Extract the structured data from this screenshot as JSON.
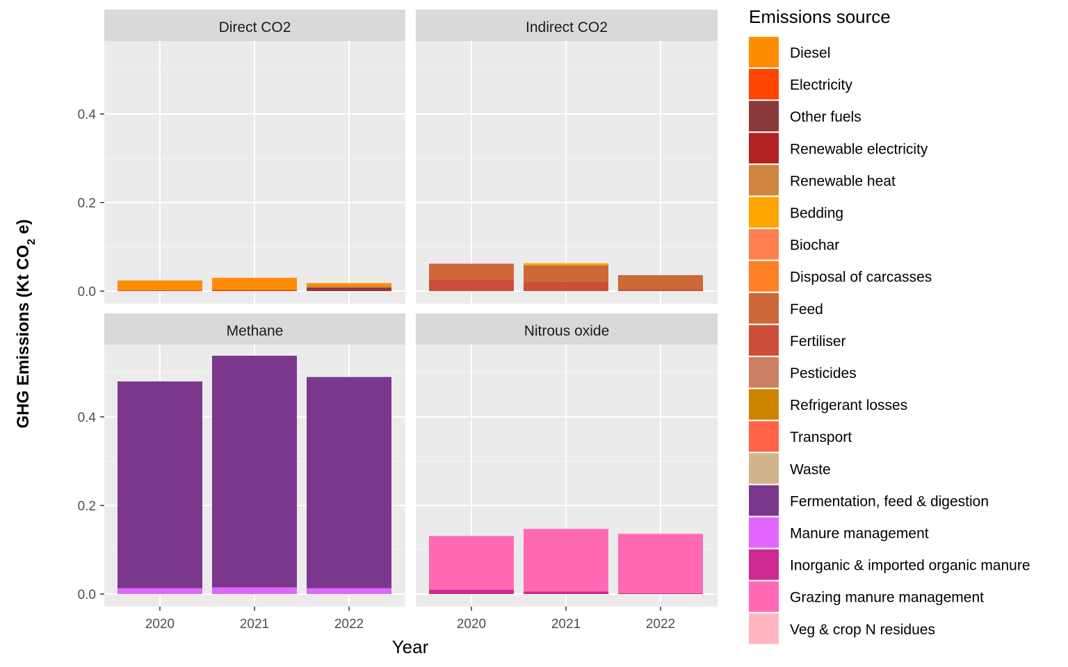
{
  "chart_data": {
    "type": "bar",
    "stacked": true,
    "facets": [
      "Direct CO2",
      "Indirect CO2",
      "Methane",
      "Nitrous oxide"
    ],
    "categories": [
      "2020",
      "2021",
      "2022"
    ],
    "xlabel": "Year",
    "ylabel": {
      "prefix": "GHG Emissions (Kt CO",
      "subscript": "2",
      "suffix": " e)"
    },
    "ylim": [
      0,
      0.58
    ],
    "yticks": [
      0.0,
      0.2,
      0.4
    ],
    "ytick_labels": [
      "0.0",
      "0.2",
      "0.4"
    ],
    "grid": true,
    "legend_position": "right",
    "legend_title": "Emissions source",
    "legend": [
      {
        "name": "Diesel",
        "color": "#FF8C00"
      },
      {
        "name": "Electricity",
        "color": "#FF4500"
      },
      {
        "name": "Other fuels",
        "color": "#8B3A3A"
      },
      {
        "name": "Renewable electricity",
        "color": "#B22222"
      },
      {
        "name": "Renewable heat",
        "color": "#CD853F"
      },
      {
        "name": "Bedding",
        "color": "#FFA500"
      },
      {
        "name": "Biochar",
        "color": "#FF7F50"
      },
      {
        "name": "Disposal of carcasses",
        "color": "#FF7F24"
      },
      {
        "name": "Feed",
        "color": "#CD6839"
      },
      {
        "name": "Fertiliser",
        "color": "#CD4F39"
      },
      {
        "name": "Pesticides",
        "color": "#CD7F62"
      },
      {
        "name": "Refrigerant losses",
        "color": "#CD8500"
      },
      {
        "name": "Transport",
        "color": "#FF6347"
      },
      {
        "name": "Waste",
        "color": "#D2B48C"
      },
      {
        "name": "Fermentation, feed & digestion",
        "color": "#7B378B"
      },
      {
        "name": "Manure management",
        "color": "#E066FF"
      },
      {
        "name": "Inorganic & imported organic manure",
        "color": "#CD2990"
      },
      {
        "name": "Grazing manure management",
        "color": "#FF69B4"
      },
      {
        "name": "Veg & crop N residues",
        "color": "#FFB6C1"
      }
    ],
    "panels": [
      {
        "facet": "Direct CO2",
        "bars": [
          {
            "x": "2020",
            "segments": [
              {
                "source": "Other fuels",
                "value": 0.001
              },
              {
                "source": "Electricity",
                "value": 0.001
              },
              {
                "source": "Diesel",
                "value": 0.022
              }
            ]
          },
          {
            "x": "2021",
            "segments": [
              {
                "source": "Other fuels",
                "value": 0.001
              },
              {
                "source": "Electricity",
                "value": 0.002
              },
              {
                "source": "Diesel",
                "value": 0.027
              }
            ]
          },
          {
            "x": "2022",
            "segments": [
              {
                "source": "Other fuels",
                "value": 0.008
              },
              {
                "source": "Renewable heat",
                "value": 0.003
              },
              {
                "source": "Diesel",
                "value": 0.007
              }
            ]
          }
        ]
      },
      {
        "facet": "Indirect CO2",
        "bars": [
          {
            "x": "2020",
            "segments": [
              {
                "source": "Fertiliser",
                "value": 0.026
              },
              {
                "source": "Feed",
                "value": 0.036
              }
            ]
          },
          {
            "x": "2021",
            "segments": [
              {
                "source": "Fertiliser",
                "value": 0.021
              },
              {
                "source": "Feed",
                "value": 0.037
              },
              {
                "source": "Bedding",
                "value": 0.005
              }
            ]
          },
          {
            "x": "2022",
            "segments": [
              {
                "source": "Fertiliser",
                "value": 0.004
              },
              {
                "source": "Feed",
                "value": 0.032
              }
            ]
          }
        ]
      },
      {
        "facet": "Methane",
        "bars": [
          {
            "x": "2020",
            "segments": [
              {
                "source": "Manure management",
                "value": 0.013
              },
              {
                "source": "Fermentation, feed & digestion",
                "value": 0.467
              }
            ]
          },
          {
            "x": "2021",
            "segments": [
              {
                "source": "Manure management",
                "value": 0.015
              },
              {
                "source": "Fermentation, feed & digestion",
                "value": 0.523
              }
            ]
          },
          {
            "x": "2022",
            "segments": [
              {
                "source": "Manure management",
                "value": 0.013
              },
              {
                "source": "Fermentation, feed & digestion",
                "value": 0.477
              }
            ]
          }
        ]
      },
      {
        "facet": "Nitrous oxide",
        "bars": [
          {
            "x": "2020",
            "segments": [
              {
                "source": "Inorganic & imported organic manure",
                "value": 0.01
              },
              {
                "source": "Grazing manure management",
                "value": 0.121
              }
            ]
          },
          {
            "x": "2021",
            "segments": [
              {
                "source": "Inorganic & imported organic manure",
                "value": 0.006
              },
              {
                "source": "Grazing manure management",
                "value": 0.141
              }
            ]
          },
          {
            "x": "2022",
            "segments": [
              {
                "source": "Inorganic & imported organic manure",
                "value": 0.002
              },
              {
                "source": "Grazing manure management",
                "value": 0.134
              }
            ]
          }
        ]
      }
    ]
  }
}
